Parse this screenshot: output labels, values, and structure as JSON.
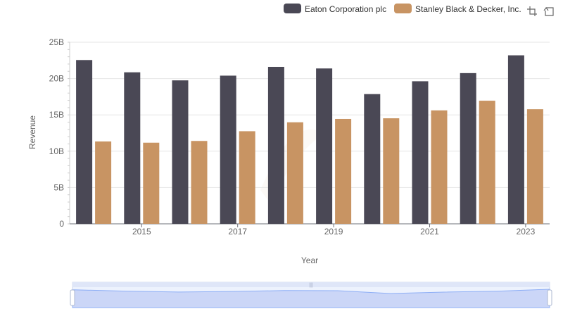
{
  "chart_data": {
    "type": "bar",
    "x": [
      2014,
      2015,
      2016,
      2017,
      2018,
      2019,
      2020,
      2021,
      2022,
      2023
    ],
    "tick_labels": [
      "2015",
      "2017",
      "2019",
      "2021",
      "2023"
    ],
    "series": [
      {
        "name": "Eaton Corporation plc",
        "color": "#4a4855",
        "values": [
          22.55,
          20.86,
          19.75,
          20.4,
          21.61,
          21.39,
          17.86,
          19.63,
          20.75,
          23.2
        ]
      },
      {
        "name": "Stanley Black & Decker, Inc.",
        "color": "#c89463",
        "values": [
          11.34,
          11.17,
          11.41,
          12.75,
          13.98,
          14.44,
          14.53,
          15.62,
          16.95,
          15.78
        ]
      }
    ],
    "y_tick_labels": [
      "0",
      "5B",
      "10B",
      "15B",
      "20B",
      "25B"
    ],
    "ylim": [
      0,
      25
    ],
    "xlabel": "Year",
    "ylabel": "Revenue",
    "grid": true,
    "legend_position": "top-right"
  },
  "toolbox": {
    "zoom_icon": "zoom-box-icon",
    "restore_icon": "restore-icon"
  },
  "datazoom": {
    "range_start_percent": 0,
    "range_end_percent": 100,
    "fill_color": "#d4dcf7",
    "line_color": "#8fb0f7"
  }
}
